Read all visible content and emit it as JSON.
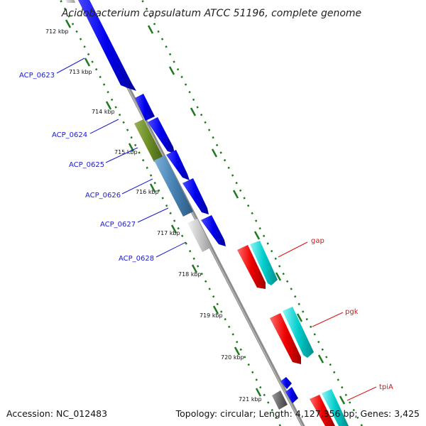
{
  "title": "Acidobacterium capsulatum ATCC 51196, complete genome",
  "footer": {
    "accession": "Accession: NC_012483",
    "topology": "Topology: circular; Length: 4,127,356 bp; Genes: 3,425"
  },
  "ticks": [
    "712 kbp",
    "713 kbp",
    "714 kbp",
    "715 kbp",
    "716 kbp",
    "717 kbp",
    "718 kbp",
    "719 kbp",
    "720 kbp",
    "721 kbp"
  ],
  "gene_labels": [
    "ACP_0623",
    "ACP_0624",
    "ACP_0625",
    "ACP_0626",
    "ACP_0627",
    "ACP_0628",
    "gap",
    "pgk",
    "tpiA"
  ],
  "colors": {
    "backbone": "#8c8c8c",
    "blue_gene": "#0000ee",
    "olive_gene": "#6b8e23",
    "steel_gene": "#4682b4",
    "gray_gene": "#c8c8c8",
    "dark_gray_gene": "#696969",
    "red_gene": "#ee0000",
    "cyan_gene": "#00cdcd",
    "dots": "#1f7a1f",
    "blue_label": "#1a1acc",
    "red_label": "#dd1111"
  }
}
